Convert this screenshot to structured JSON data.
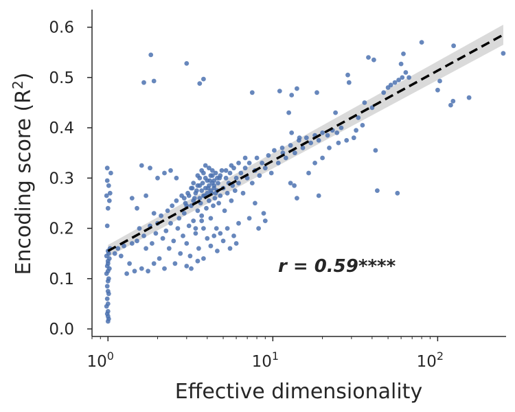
{
  "chart_data": {
    "type": "scatter",
    "xscale": "log",
    "xlim": [
      0.8,
      260
    ],
    "ylim": [
      -0.015,
      0.635
    ],
    "xlabel": "Effective dimensionality",
    "ylabel": "Encoding score (R²)",
    "xticks": [
      {
        "value": 1,
        "base": "10",
        "exp": "0"
      },
      {
        "value": 10,
        "base": "10",
        "exp": "1"
      },
      {
        "value": 100,
        "base": "10",
        "exp": "2"
      }
    ],
    "yticks": [
      {
        "value": 0.0,
        "label": "0.0"
      },
      {
        "value": 0.1,
        "label": "0.1"
      },
      {
        "value": 0.2,
        "label": "0.2"
      },
      {
        "value": 0.3,
        "label": "0.3"
      },
      {
        "value": 0.4,
        "label": "0.4"
      },
      {
        "value": 0.5,
        "label": "0.5"
      },
      {
        "value": 0.6,
        "label": "0.6"
      }
    ],
    "annotation": "r = 0.59****",
    "grid": false,
    "colors": {
      "points": "#4c72b0",
      "fit_line": "#000000",
      "ci_band": "#d3d3d3"
    },
    "fit": {
      "x": [
        1.0,
        250
      ],
      "y": [
        0.155,
        0.585
      ],
      "ci_halfwidth": [
        0.012,
        0.02
      ]
    },
    "points": [
      [
        1.0,
        0.015
      ],
      [
        1.01,
        0.02
      ],
      [
        1.0,
        0.025
      ],
      [
        0.99,
        0.03
      ],
      [
        1.0,
        0.035
      ],
      [
        0.98,
        0.045
      ],
      [
        1.0,
        0.05
      ],
      [
        0.99,
        0.06
      ],
      [
        1.01,
        0.07
      ],
      [
        1.0,
        0.075
      ],
      [
        0.99,
        0.085
      ],
      [
        1.0,
        0.095
      ],
      [
        1.01,
        0.1
      ],
      [
        0.98,
        0.11
      ],
      [
        1.0,
        0.115
      ],
      [
        1.02,
        0.12
      ],
      [
        0.99,
        0.125
      ],
      [
        1.0,
        0.13
      ],
      [
        1.0,
        0.135
      ],
      [
        1.02,
        0.14
      ],
      [
        0.98,
        0.145
      ],
      [
        1.01,
        0.15
      ],
      [
        1.0,
        0.155
      ],
      [
        1.03,
        0.16
      ],
      [
        0.99,
        0.205
      ],
      [
        1.0,
        0.24
      ],
      [
        1.02,
        0.255
      ],
      [
        0.98,
        0.265
      ],
      [
        1.03,
        0.27
      ],
      [
        1.01,
        0.285
      ],
      [
        0.99,
        0.295
      ],
      [
        1.04,
        0.31
      ],
      [
        0.99,
        0.32
      ],
      [
        1.1,
        0.15
      ],
      [
        1.15,
        0.16
      ],
      [
        1.2,
        0.145
      ],
      [
        1.25,
        0.165
      ],
      [
        1.3,
        0.11
      ],
      [
        1.35,
        0.13
      ],
      [
        1.4,
        0.17
      ],
      [
        1.45,
        0.115
      ],
      [
        1.5,
        0.175
      ],
      [
        1.55,
        0.2
      ],
      [
        1.6,
        0.12
      ],
      [
        1.65,
        0.185
      ],
      [
        1.7,
        0.16
      ],
      [
        1.75,
        0.115
      ],
      [
        1.8,
        0.205
      ],
      [
        1.85,
        0.17
      ],
      [
        1.9,
        0.13
      ],
      [
        1.95,
        0.19
      ],
      [
        2.0,
        0.21
      ],
      [
        2.05,
        0.14
      ],
      [
        2.1,
        0.225
      ],
      [
        2.15,
        0.18
      ],
      [
        2.2,
        0.12
      ],
      [
        2.25,
        0.195
      ],
      [
        2.3,
        0.235
      ],
      [
        2.35,
        0.16
      ],
      [
        2.4,
        0.21
      ],
      [
        2.45,
        0.245
      ],
      [
        2.5,
        0.175
      ],
      [
        2.55,
        0.13
      ],
      [
        2.6,
        0.255
      ],
      [
        2.65,
        0.2
      ],
      [
        2.7,
        0.22
      ],
      [
        2.75,
        0.15
      ],
      [
        2.8,
        0.265
      ],
      [
        2.85,
        0.185
      ],
      [
        2.9,
        0.23
      ],
      [
        2.95,
        0.25
      ],
      [
        3.0,
        0.17
      ],
      [
        3.05,
        0.27
      ],
      [
        3.1,
        0.205
      ],
      [
        3.15,
        0.145
      ],
      [
        3.2,
        0.245
      ],
      [
        3.25,
        0.28
      ],
      [
        3.3,
        0.215
      ],
      [
        3.35,
        0.26
      ],
      [
        3.4,
        0.19
      ],
      [
        3.45,
        0.275
      ],
      [
        3.5,
        0.235
      ],
      [
        3.55,
        0.16
      ],
      [
        3.6,
        0.285
      ],
      [
        3.65,
        0.25
      ],
      [
        3.7,
        0.225
      ],
      [
        3.75,
        0.29
      ],
      [
        3.8,
        0.2
      ],
      [
        3.85,
        0.265
      ],
      [
        3.9,
        0.3
      ],
      [
        3.95,
        0.24
      ],
      [
        4.0,
        0.18
      ],
      [
        4.05,
        0.28
      ],
      [
        4.1,
        0.255
      ],
      [
        4.15,
        0.295
      ],
      [
        4.2,
        0.22
      ],
      [
        4.25,
        0.27
      ],
      [
        4.3,
        0.305
      ],
      [
        4.35,
        0.245
      ],
      [
        4.4,
        0.285
      ],
      [
        4.45,
        0.26
      ],
      [
        4.5,
        0.31
      ],
      [
        4.55,
        0.2
      ],
      [
        4.6,
        0.275
      ],
      [
        4.65,
        0.29
      ],
      [
        4.7,
        0.25
      ],
      [
        4.75,
        0.3
      ],
      [
        4.8,
        0.265
      ],
      [
        4.9,
        0.315
      ],
      [
        5.0,
        0.28
      ],
      [
        5.1,
        0.235
      ],
      [
        5.2,
        0.3
      ],
      [
        5.3,
        0.27
      ],
      [
        5.4,
        0.29
      ],
      [
        5.5,
        0.31
      ],
      [
        5.6,
        0.255
      ],
      [
        5.7,
        0.285
      ],
      [
        5.8,
        0.32
      ],
      [
        5.9,
        0.275
      ],
      [
        6.0,
        0.3
      ],
      [
        6.2,
        0.29
      ],
      [
        6.4,
        0.31
      ],
      [
        6.6,
        0.27
      ],
      [
        6.8,
        0.32
      ],
      [
        7.0,
        0.3
      ],
      [
        7.2,
        0.33
      ],
      [
        7.5,
        0.29
      ],
      [
        7.8,
        0.315
      ],
      [
        8.0,
        0.34
      ],
      [
        8.3,
        0.305
      ],
      [
        8.6,
        0.33
      ],
      [
        9.0,
        0.32
      ],
      [
        9.4,
        0.345
      ],
      [
        9.8,
        0.31
      ],
      [
        10.2,
        0.355
      ],
      [
        10.8,
        0.33
      ],
      [
        11.4,
        0.36
      ],
      [
        12.0,
        0.34
      ],
      [
        12.8,
        0.365
      ],
      [
        13.6,
        0.35
      ],
      [
        14.4,
        0.375
      ],
      [
        15.2,
        0.36
      ],
      [
        16.0,
        0.38
      ],
      [
        17.0,
        0.37
      ],
      [
        18.0,
        0.385
      ],
      [
        19.0,
        0.375
      ],
      [
        20.0,
        0.39
      ],
      [
        21.5,
        0.385
      ],
      [
        23.0,
        0.395
      ],
      [
        24.5,
        0.39
      ],
      [
        26.0,
        0.4
      ],
      [
        3.2,
        0.28
      ],
      [
        3.3,
        0.255
      ],
      [
        3.4,
        0.27
      ],
      [
        3.5,
        0.285
      ],
      [
        3.6,
        0.26
      ],
      [
        3.7,
        0.275
      ],
      [
        3.8,
        0.265
      ],
      [
        3.9,
        0.28
      ],
      [
        4.0,
        0.27
      ],
      [
        4.1,
        0.285
      ],
      [
        4.2,
        0.275
      ],
      [
        4.3,
        0.29
      ],
      [
        4.4,
        0.28
      ],
      [
        4.5,
        0.27
      ],
      [
        3.6,
        0.3
      ],
      [
        3.8,
        0.31
      ],
      [
        4.0,
        0.295
      ],
      [
        4.2,
        0.305
      ],
      [
        4.4,
        0.295
      ],
      [
        4.6,
        0.3
      ],
      [
        2.9,
        0.26
      ],
      [
        3.0,
        0.245
      ],
      [
        3.1,
        0.265
      ],
      [
        3.3,
        0.29
      ],
      [
        3.5,
        0.305
      ],
      [
        3.7,
        0.315
      ],
      [
        3.9,
        0.325
      ],
      [
        4.1,
        0.32
      ],
      [
        4.3,
        0.315
      ],
      [
        4.8,
        0.305
      ],
      [
        5.2,
        0.315
      ],
      [
        5.6,
        0.325
      ],
      [
        6.2,
        0.33
      ],
      [
        6.8,
        0.34
      ],
      [
        3.0,
        0.125
      ],
      [
        3.2,
        0.12
      ],
      [
        3.5,
        0.135
      ],
      [
        3.8,
        0.14
      ],
      [
        4.2,
        0.165
      ],
      [
        4.6,
        0.155
      ],
      [
        5.0,
        0.175
      ],
      [
        5.5,
        0.16
      ],
      [
        6.0,
        0.17
      ],
      [
        4.8,
        0.19
      ],
      [
        5.3,
        0.2
      ],
      [
        6.2,
        0.21
      ],
      [
        3.4,
        0.2
      ],
      [
        3.7,
        0.215
      ],
      [
        4.4,
        0.185
      ],
      [
        5.8,
        0.185
      ],
      [
        7.2,
        0.22
      ],
      [
        8.2,
        0.2
      ],
      [
        9.0,
        0.215
      ],
      [
        8.8,
        0.23
      ],
      [
        7.8,
        0.25
      ],
      [
        2.6,
        0.3
      ],
      [
        2.2,
        0.31
      ],
      [
        2.0,
        0.3
      ],
      [
        1.8,
        0.32
      ],
      [
        2.4,
        0.315
      ],
      [
        1.6,
        0.325
      ],
      [
        1.5,
        0.24
      ],
      [
        1.4,
        0.26
      ],
      [
        1.7,
        0.265
      ],
      [
        1.9,
        0.23
      ],
      [
        1.65,
        0.49
      ],
      [
        1.82,
        0.545
      ],
      [
        1.9,
        0.493
      ],
      [
        3.0,
        0.528
      ],
      [
        3.6,
        0.488
      ],
      [
        3.8,
        0.497
      ],
      [
        7.5,
        0.47
      ],
      [
        11.0,
        0.473
      ],
      [
        13.0,
        0.465
      ],
      [
        14.0,
        0.478
      ],
      [
        18.5,
        0.47
      ],
      [
        12.5,
        0.43
      ],
      [
        13.0,
        0.39
      ],
      [
        14.5,
        0.38
      ],
      [
        11.5,
        0.35
      ],
      [
        12.8,
        0.29
      ],
      [
        13.5,
        0.285
      ],
      [
        14.0,
        0.26
      ],
      [
        19.0,
        0.265
      ],
      [
        16.5,
        0.31
      ],
      [
        18.0,
        0.33
      ],
      [
        20.0,
        0.34
      ],
      [
        22.0,
        0.36
      ],
      [
        25.0,
        0.37
      ],
      [
        28.0,
        0.375
      ],
      [
        31.0,
        0.38
      ],
      [
        28.5,
        0.505
      ],
      [
        29.0,
        0.49
      ],
      [
        38.0,
        0.54
      ],
      [
        41.0,
        0.535
      ],
      [
        42.0,
        0.355
      ],
      [
        43.0,
        0.275
      ],
      [
        57.0,
        0.27
      ],
      [
        50.0,
        0.48
      ],
      [
        55.0,
        0.49
      ],
      [
        58.0,
        0.495
      ],
      [
        61.0,
        0.5
      ],
      [
        64.0,
        0.51
      ],
      [
        67.0,
        0.5
      ],
      [
        47.0,
        0.47
      ],
      [
        52.0,
        0.485
      ],
      [
        60.0,
        0.527
      ],
      [
        62.0,
        0.547
      ],
      [
        80.0,
        0.57
      ],
      [
        100.0,
        0.475
      ],
      [
        103.0,
        0.493
      ],
      [
        120.0,
        0.445
      ],
      [
        124.0,
        0.453
      ],
      [
        125.0,
        0.563
      ],
      [
        155.0,
        0.46
      ],
      [
        250.0,
        0.548
      ],
      [
        33.0,
        0.42
      ],
      [
        35.0,
        0.405
      ],
      [
        36.0,
        0.45
      ],
      [
        40.0,
        0.44
      ],
      [
        32.0,
        0.395
      ],
      [
        24.0,
        0.43
      ]
    ]
  }
}
